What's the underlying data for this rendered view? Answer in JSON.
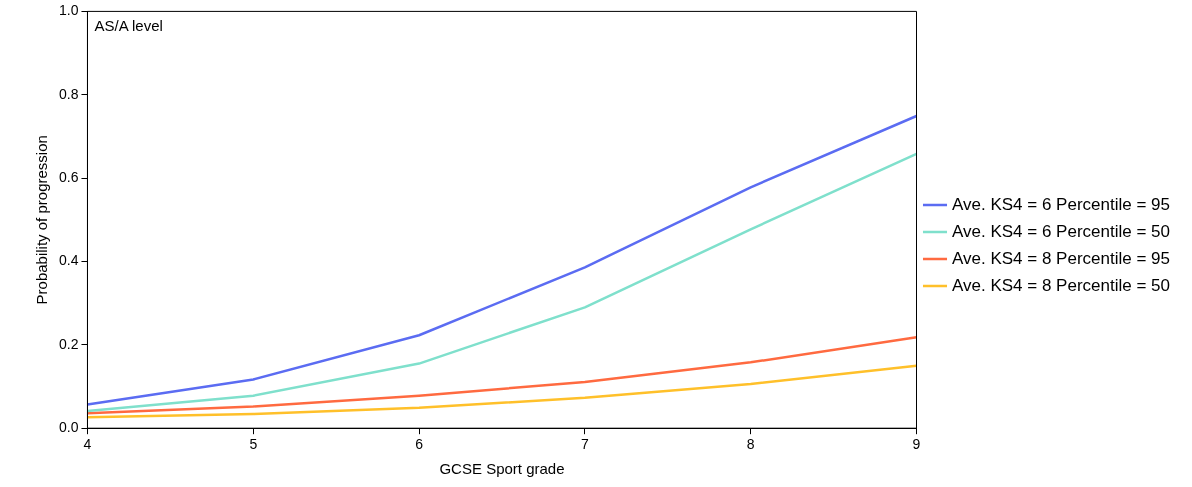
{
  "chart_data": {
    "type": "line",
    "xlabel": "GCSE Sport grade",
    "ylabel": "Probability of progression",
    "annotations": [
      "AS/A level"
    ],
    "x": [
      4,
      5,
      6,
      7,
      8,
      9
    ],
    "series": [
      {
        "name": "Ave. KS4 = 6 Percentile = 95",
        "color": "#5b6cf2",
        "values": [
          0.057,
          0.117,
          0.223,
          0.386,
          0.578,
          0.749
        ]
      },
      {
        "name": "Ave. KS4 = 6 Percentile = 50",
        "color": "#7fe0cc",
        "values": [
          0.041,
          0.078,
          0.155,
          0.29,
          0.477,
          0.658
        ]
      },
      {
        "name": "Ave. KS4 = 8 Percentile = 95",
        "color": "#ff6a40",
        "values": [
          0.036,
          0.052,
          0.078,
          0.111,
          0.158,
          0.218
        ]
      },
      {
        "name": "Ave. KS4 = 8 Percentile = 50",
        "color": "#ffc02a",
        "values": [
          0.026,
          0.034,
          0.049,
          0.073,
          0.106,
          0.15
        ]
      }
    ],
    "xlim": [
      4,
      9
    ],
    "xticks": [
      4,
      5,
      6,
      7,
      8,
      9
    ],
    "ylim": [
      0,
      1
    ],
    "yticks": [
      {
        "value": 0,
        "label": "0.0"
      },
      {
        "value": 0.2,
        "label": "0.2"
      },
      {
        "value": 0.4,
        "label": "0.4"
      },
      {
        "value": 0.6,
        "label": "0.6"
      },
      {
        "value": 0.8,
        "label": "0.8"
      },
      {
        "value": 1,
        "label": "1.0"
      }
    ],
    "grid": false,
    "legend": "right",
    "marker": "none",
    "line_style": "solid"
  }
}
